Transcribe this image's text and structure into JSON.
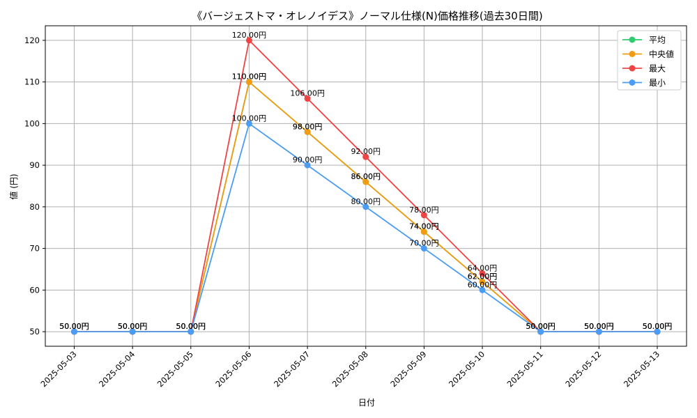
{
  "chart_data": {
    "type": "line",
    "title": "《バージェストマ・オレノイデス》ノーマル仕様(N)価格推移(過去30日間)",
    "xlabel": "日付",
    "ylabel": "値 (円)",
    "categories": [
      "2025-05-03",
      "2025-05-04",
      "2025-05-05",
      "2025-05-06",
      "2025-05-07",
      "2025-05-08",
      "2025-05-09",
      "2025-05-10",
      "2025-05-11",
      "2025-05-12",
      "2025-05-13"
    ],
    "ylim": [
      46.5,
      123.5
    ],
    "yticks": [
      50,
      60,
      70,
      80,
      90,
      100,
      110,
      120
    ],
    "grid": true,
    "legend_position": "top-right",
    "label_suffix": "円",
    "series": [
      {
        "name": "平均",
        "color": "#2ecc71",
        "values": [
          50,
          50,
          50,
          110,
          98,
          86,
          74,
          62,
          50,
          50,
          50
        ]
      },
      {
        "name": "中央値",
        "color": "#f39c12",
        "values": [
          50,
          50,
          50,
          110,
          98,
          86,
          74,
          62,
          50,
          50,
          50
        ]
      },
      {
        "name": "最大",
        "color": "#ef4444",
        "values": [
          50,
          50,
          50,
          120,
          106,
          92,
          78,
          64,
          50,
          50,
          50
        ]
      },
      {
        "name": "最小",
        "color": "#4b9cf5",
        "values": [
          50,
          50,
          50,
          100,
          90,
          80,
          70,
          60,
          50,
          50,
          50
        ]
      }
    ]
  }
}
